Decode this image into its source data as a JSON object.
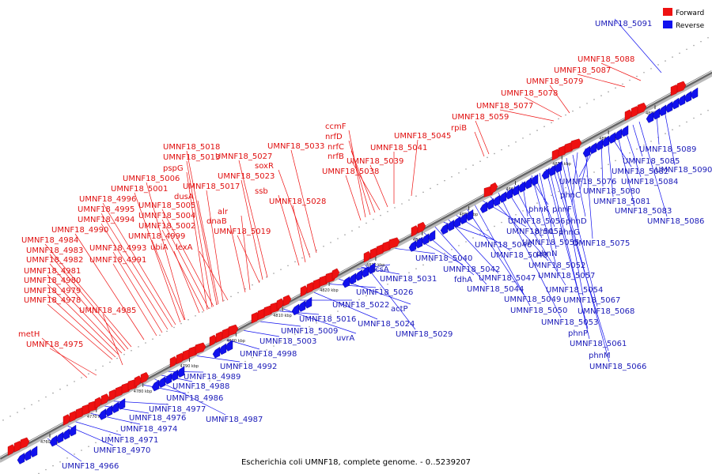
{
  "caption": "Escherichia coli UMNF18, complete genome. - 0..5239207",
  "legend": [
    {
      "label": "Forward",
      "color": "#ee1111"
    },
    {
      "label": "Reverse",
      "color": "#1111ee"
    }
  ],
  "axis": {
    "ticks": [
      {
        "bp": 4760000,
        "label": "4760 kbp"
      },
      {
        "bp": 4770000,
        "label": "4770 kbp"
      },
      {
        "bp": 4780000,
        "label": "4780 kbp"
      },
      {
        "bp": 4790000,
        "label": "4790 kbp"
      },
      {
        "bp": 4800000,
        "label": "4800 kbp"
      },
      {
        "bp": 4810000,
        "label": "4810 kbp"
      },
      {
        "bp": 4820000,
        "label": "4820 kbp"
      },
      {
        "bp": 4830000,
        "label": "4830 kbp"
      },
      {
        "bp": 4840000,
        "label": "4840 kbp"
      },
      {
        "bp": 4850000,
        "label": "4850 kbp"
      },
      {
        "bp": 4860000,
        "label": "4860 kbp"
      },
      {
        "bp": 4870000,
        "label": "4870 kbp"
      },
      {
        "bp": 4880000,
        "label": "4880 kbp"
      },
      {
        "bp": 4890000,
        "label": "4890 kbp"
      }
    ]
  },
  "forward_labels": [
    "metH",
    "UMNF18_4975",
    "UMNF18_4978",
    "UMNF18_4979",
    "UMNF18_4980",
    "UMNF18_4981",
    "UMNF18_4982",
    "UMNF18_4983",
    "UMNF18_4984",
    "UMNF18_4990",
    "UMNF18_4994",
    "UMNF18_4995",
    "UMNF18_4996",
    "UMNF18_5001",
    "UMNF18_5006",
    "pspG",
    "UMNF18_5013",
    "UMNF18_5018",
    "UMNF18_4985",
    "UMNF18_4991",
    "UMNF18_4993",
    "UMNF18_4999",
    "ubiA",
    "UMNF18_5002",
    "UMNF18_5004",
    "UMNF18_5005",
    "dusA",
    "UMNF18_5017",
    "UMNF18_5023",
    "UMNF18_5027",
    "lexA",
    "dnaB",
    "alr",
    "UMNF18_5019",
    "UMNF18_5028",
    "ssb",
    "soxR",
    "UMNF18_5033",
    "ccmF",
    "nrfD",
    "nrfC",
    "nrfB",
    "UMNF18_5038",
    "UMNF18_5039",
    "UMNF18_5041",
    "UMNF18_5045",
    "rpiB",
    "UMNF18_5059",
    "UMNF18_5077",
    "UMNF18_5078",
    "UMNF18_5079",
    "UMNF18_5087",
    "UMNF18_5088"
  ],
  "reverse_labels": [
    "UMNF18_4966",
    "UMNF18_4970",
    "UMNF18_4971",
    "UMNF18_4974",
    "UMNF18_4976",
    "UMNF18_4977",
    "UMNF18_4986",
    "UMNF18_4987",
    "UMNF18_4988",
    "UMNF18_4989",
    "UMNF18_4992",
    "UMNF18_4998",
    "UMNF18_5003",
    "UMNF18_5009",
    "uvrA",
    "UMNF18_5016",
    "UMNF18_5022",
    "UMNF18_5024",
    "actP",
    "UMNF18_5026",
    "UMNF18_5029",
    "UMNF18_5031",
    "acsA",
    "UMNF18_5040",
    "UMNF18_5042",
    "fdhA",
    "UMNF18_5044",
    "UMNF18_5046",
    "UMNF18_5047",
    "UMNF18_5048",
    "UMNF18_5049",
    "UMNF18_5050",
    "UMNF18_5051",
    "UMNF18_5052",
    "UMNF18_5053",
    "UMNF18_5054",
    "UMNF18_5055",
    "UMNF18_5056",
    "phnK",
    "phnL",
    "phnN",
    "phnP",
    "UMNF18_5061",
    "phnM",
    "UMNF18_5066",
    "UMNF18_5057",
    "UMNF18_5067",
    "UMNF18_5068",
    "phnG",
    "phnD",
    "phnF",
    "UMNF18_5075",
    "phnC",
    "UMNF18_5076",
    "UMNF18_5080",
    "UMNF18_5081",
    "UMNF18_5082",
    "UMNF18_5083",
    "UMNF18_5084",
    "UMNF18_5085",
    "UMNF18_5086",
    "UMNF18_5089",
    "UMNF18_5090",
    "UMNF18_5091"
  ]
}
